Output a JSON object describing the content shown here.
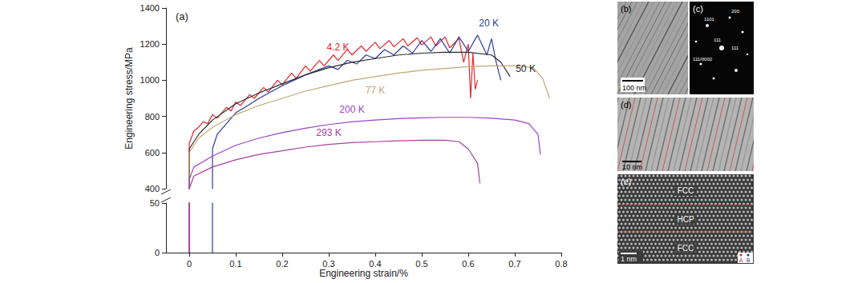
{
  "chart_data": {
    "type": "line",
    "annotations": [
      "(a)"
    ],
    "xlabel": "Engineering strain/%",
    "ylabel": "Engineering stress/MPa",
    "xlim": [
      -0.05,
      0.8
    ],
    "xticks": [
      0,
      0.1,
      0.2,
      0.3,
      0.4,
      0.5,
      0.6,
      0.7,
      0.8
    ],
    "ylim": [
      0,
      1400
    ],
    "yticks": [
      0,
      50,
      400,
      600,
      800,
      1000,
      1200,
      1400
    ],
    "ybreak": [
      50,
      400
    ],
    "grid": false,
    "series": [
      {
        "name": "4.2 K",
        "color": "#e3262b",
        "x": [
          0,
          0,
          0.01,
          0.02,
          0.03,
          0.04,
          0.05,
          0.06,
          0.08,
          0.09,
          0.1,
          0.11,
          0.13,
          0.14,
          0.16,
          0.17,
          0.19,
          0.2,
          0.22,
          0.23,
          0.25,
          0.26,
          0.28,
          0.29,
          0.31,
          0.32,
          0.34,
          0.35,
          0.37,
          0.38,
          0.4,
          0.41,
          0.43,
          0.44,
          0.46,
          0.47,
          0.49,
          0.5,
          0.52,
          0.53,
          0.55,
          0.56,
          0.58,
          0.59,
          0.6,
          0.605,
          0.61,
          0.615,
          0.62
        ],
        "values": [
          0,
          650,
          720,
          740,
          770,
          760,
          810,
          790,
          850,
          830,
          880,
          860,
          920,
          900,
          960,
          935,
          1000,
          975,
          1040,
          1010,
          1080,
          1050,
          1110,
          1080,
          1140,
          1110,
          1170,
          1140,
          1190,
          1160,
          1210,
          1175,
          1220,
          1185,
          1230,
          1190,
          1235,
          1195,
          1240,
          1190,
          1240,
          1180,
          1230,
          1100,
          1200,
          900,
          1150,
          950,
          1000
        ]
      },
      {
        "name": "20 K",
        "color": "#2b3c9e",
        "x": [
          0.05,
          0.05,
          0.06,
          0.08,
          0.1,
          0.12,
          0.15,
          0.2,
          0.25,
          0.3,
          0.32,
          0.34,
          0.36,
          0.38,
          0.4,
          0.42,
          0.44,
          0.46,
          0.48,
          0.5,
          0.52,
          0.54,
          0.56,
          0.58,
          0.6,
          0.62,
          0.64,
          0.65,
          0.66,
          0.67
        ],
        "values": [
          0,
          620,
          700,
          760,
          820,
          850,
          900,
          970,
          1030,
          1080,
          1060,
          1110,
          1090,
          1140,
          1120,
          1170,
          1140,
          1190,
          1150,
          1220,
          1160,
          1230,
          1150,
          1240,
          1160,
          1250,
          1140,
          1230,
          1100,
          1000
        ]
      },
      {
        "name": "50 K",
        "color": "#2a2a2a",
        "x": [
          0,
          0,
          0.02,
          0.05,
          0.1,
          0.15,
          0.2,
          0.25,
          0.3,
          0.35,
          0.4,
          0.45,
          0.5,
          0.55,
          0.6,
          0.65,
          0.67,
          0.69
        ],
        "values": [
          0,
          620,
          700,
          780,
          870,
          930,
          980,
          1030,
          1070,
          1100,
          1120,
          1140,
          1150,
          1155,
          1155,
          1140,
          1100,
          1020
        ]
      },
      {
        "name": "77 K",
        "color": "#c4a574",
        "x": [
          0,
          0,
          0.02,
          0.05,
          0.1,
          0.15,
          0.2,
          0.25,
          0.3,
          0.35,
          0.4,
          0.45,
          0.5,
          0.55,
          0.6,
          0.65,
          0.7,
          0.74,
          0.76,
          0.775
        ],
        "values": [
          0,
          600,
          680,
          740,
          810,
          860,
          900,
          940,
          970,
          1000,
          1020,
          1040,
          1055,
          1065,
          1075,
          1080,
          1080,
          1070,
          1010,
          900
        ]
      },
      {
        "name": "200 K",
        "color": "#9a44c4",
        "x": [
          0,
          0,
          0.01,
          0.05,
          0.1,
          0.15,
          0.2,
          0.25,
          0.3,
          0.35,
          0.4,
          0.45,
          0.5,
          0.55,
          0.6,
          0.65,
          0.7,
          0.73,
          0.75,
          0.755
        ],
        "values": [
          0,
          450,
          520,
          580,
          640,
          680,
          710,
          735,
          755,
          770,
          780,
          788,
          792,
          795,
          795,
          790,
          780,
          760,
          700,
          590
        ]
      },
      {
        "name": "293 K",
        "color": "#a8409c",
        "x": [
          0,
          0,
          0.01,
          0.05,
          0.1,
          0.15,
          0.2,
          0.25,
          0.3,
          0.35,
          0.4,
          0.45,
          0.5,
          0.55,
          0.58,
          0.6,
          0.62,
          0.625
        ],
        "values": [
          0,
          400,
          470,
          520,
          560,
          590,
          610,
          630,
          645,
          655,
          660,
          665,
          668,
          668,
          660,
          620,
          540,
          430
        ]
      }
    ]
  },
  "panels": [
    {
      "label": "(b)",
      "scale_bar": "100 nm"
    },
    {
      "label": "(c)",
      "texts": [
        "1101",
        "200",
        "111",
        "111",
        "111/0002"
      ]
    },
    {
      "label": "(d)",
      "scale_bar": "10 nm"
    },
    {
      "label": "(e)",
      "scale_bar": "1 nm",
      "phases": [
        "FCC",
        "HCP",
        "FCC"
      ],
      "sites": [
        "A",
        "B"
      ]
    }
  ]
}
